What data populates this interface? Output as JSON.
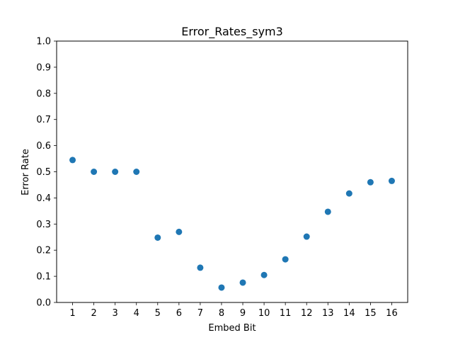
{
  "chart_data": {
    "type": "scatter",
    "title": "Error_Rates_sym3",
    "xlabel": "Embed Bit",
    "ylabel": "Error Rate",
    "x": [
      1,
      2,
      3,
      4,
      5,
      6,
      7,
      8,
      9,
      10,
      11,
      12,
      13,
      14,
      15,
      16
    ],
    "y": [
      0.545,
      0.5,
      0.5,
      0.5,
      0.248,
      0.27,
      0.133,
      0.057,
      0.076,
      0.105,
      0.165,
      0.252,
      0.347,
      0.417,
      0.46,
      0.465
    ],
    "xlim": [
      0.25,
      16.75
    ],
    "ylim": [
      0,
      1
    ],
    "x_ticks": [
      "1",
      "2",
      "3",
      "4",
      "5",
      "6",
      "7",
      "8",
      "9",
      "10",
      "11",
      "12",
      "13",
      "14",
      "15",
      "16"
    ],
    "y_ticks": [
      "0.0",
      "0.1",
      "0.2",
      "0.3",
      "0.4",
      "0.5",
      "0.6",
      "0.7",
      "0.8",
      "0.9",
      "1.0"
    ],
    "grid": false,
    "legend": "none",
    "marker_color": "#1f77b4"
  }
}
